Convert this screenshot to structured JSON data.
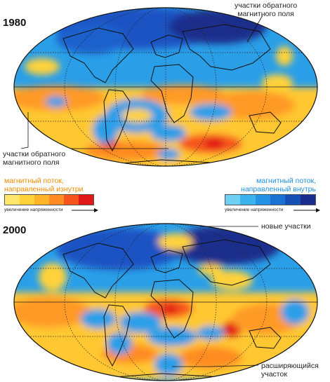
{
  "panels": [
    {
      "year": "1980",
      "annotations": {
        "top_right": [
          "участки обратного",
          "магнитного поля"
        ],
        "bottom_left": [
          "участки обратного",
          "магнитного поля"
        ]
      }
    },
    {
      "year": "2000",
      "annotations": {
        "top_right": [
          "новые участки"
        ],
        "bottom_right": [
          "расширяющийся",
          "участок"
        ]
      }
    }
  ],
  "legend": {
    "outward": {
      "title": [
        "магнитный поток,",
        "направленный изнутри"
      ],
      "scale_caption": "увеличение напряженности",
      "colors": [
        "#ffe66b",
        "#ffd23a",
        "#ffb42a",
        "#ff8c22",
        "#f5541e",
        "#e01818"
      ]
    },
    "inward": {
      "title": [
        "магнитный поток,",
        "направленный внутрь"
      ],
      "scale_caption": "увеличение напряженности",
      "colors": [
        "#6fd0f5",
        "#3bb2ee",
        "#2592e4",
        "#1a72d2",
        "#1650b4",
        "#1b2d8c"
      ]
    }
  },
  "colors": {
    "ocean_blue": "#2a9fe8",
    "deep_blue": "#1a52c2",
    "navy": "#1b2d8c",
    "yellow": "#ffd23a",
    "orange": "#ff9a28",
    "red": "#e82a1c"
  }
}
